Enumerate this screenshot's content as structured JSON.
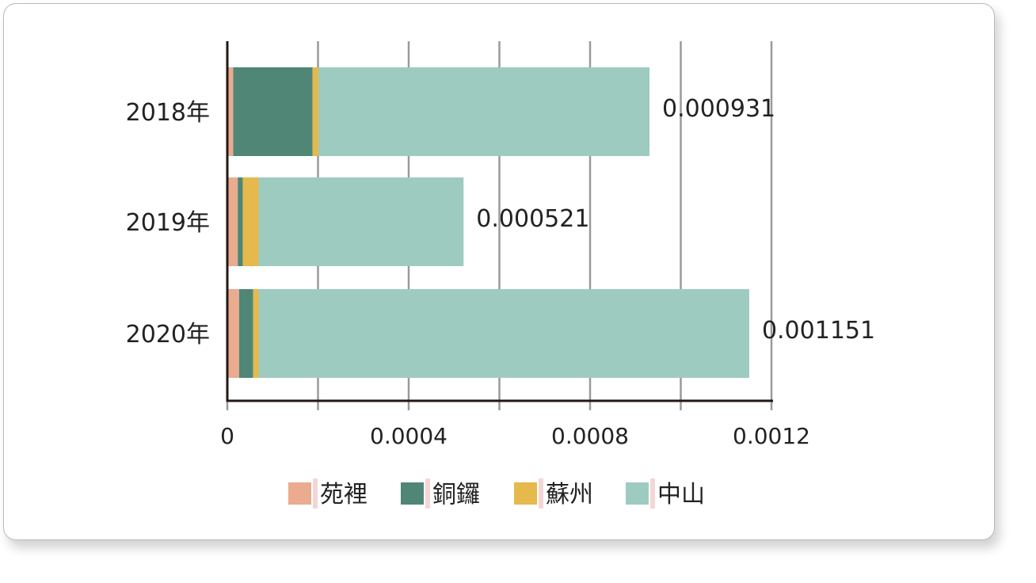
{
  "chart_data": {
    "type": "bar",
    "orientation": "horizontal",
    "stacked": true,
    "categories": [
      "2018年",
      "2019年",
      "2020年"
    ],
    "series": [
      {
        "name": "苑裡",
        "color": "#eaab8e",
        "values": [
          1.3e-05,
          2.3e-05,
          2.6e-05
        ]
      },
      {
        "name": "銅鑼",
        "color": "#508676",
        "values": [
          0.000175,
          1.1e-05,
          3.1e-05
        ]
      },
      {
        "name": "蘇州",
        "color": "#e5b94c",
        "values": [
          1.3e-05,
          3.5e-05,
          1.2e-05
        ]
      },
      {
        "name": "中山",
        "color": "#9ecbc0",
        "values": [
          0.00073,
          0.000452,
          0.001082
        ]
      }
    ],
    "totals": [
      "0.000931",
      "0.000521",
      "0.001151"
    ],
    "x_ticks": [
      0,
      0.0002,
      0.0004,
      0.0006,
      0.0008,
      0.001,
      0.0012
    ],
    "x_tick_labels": [
      "0",
      "",
      "0.0004",
      "",
      "0.0008",
      "",
      "0.0012"
    ],
    "xlim": [
      0,
      0.0012
    ],
    "grid": true,
    "legend_position": "bottom"
  }
}
